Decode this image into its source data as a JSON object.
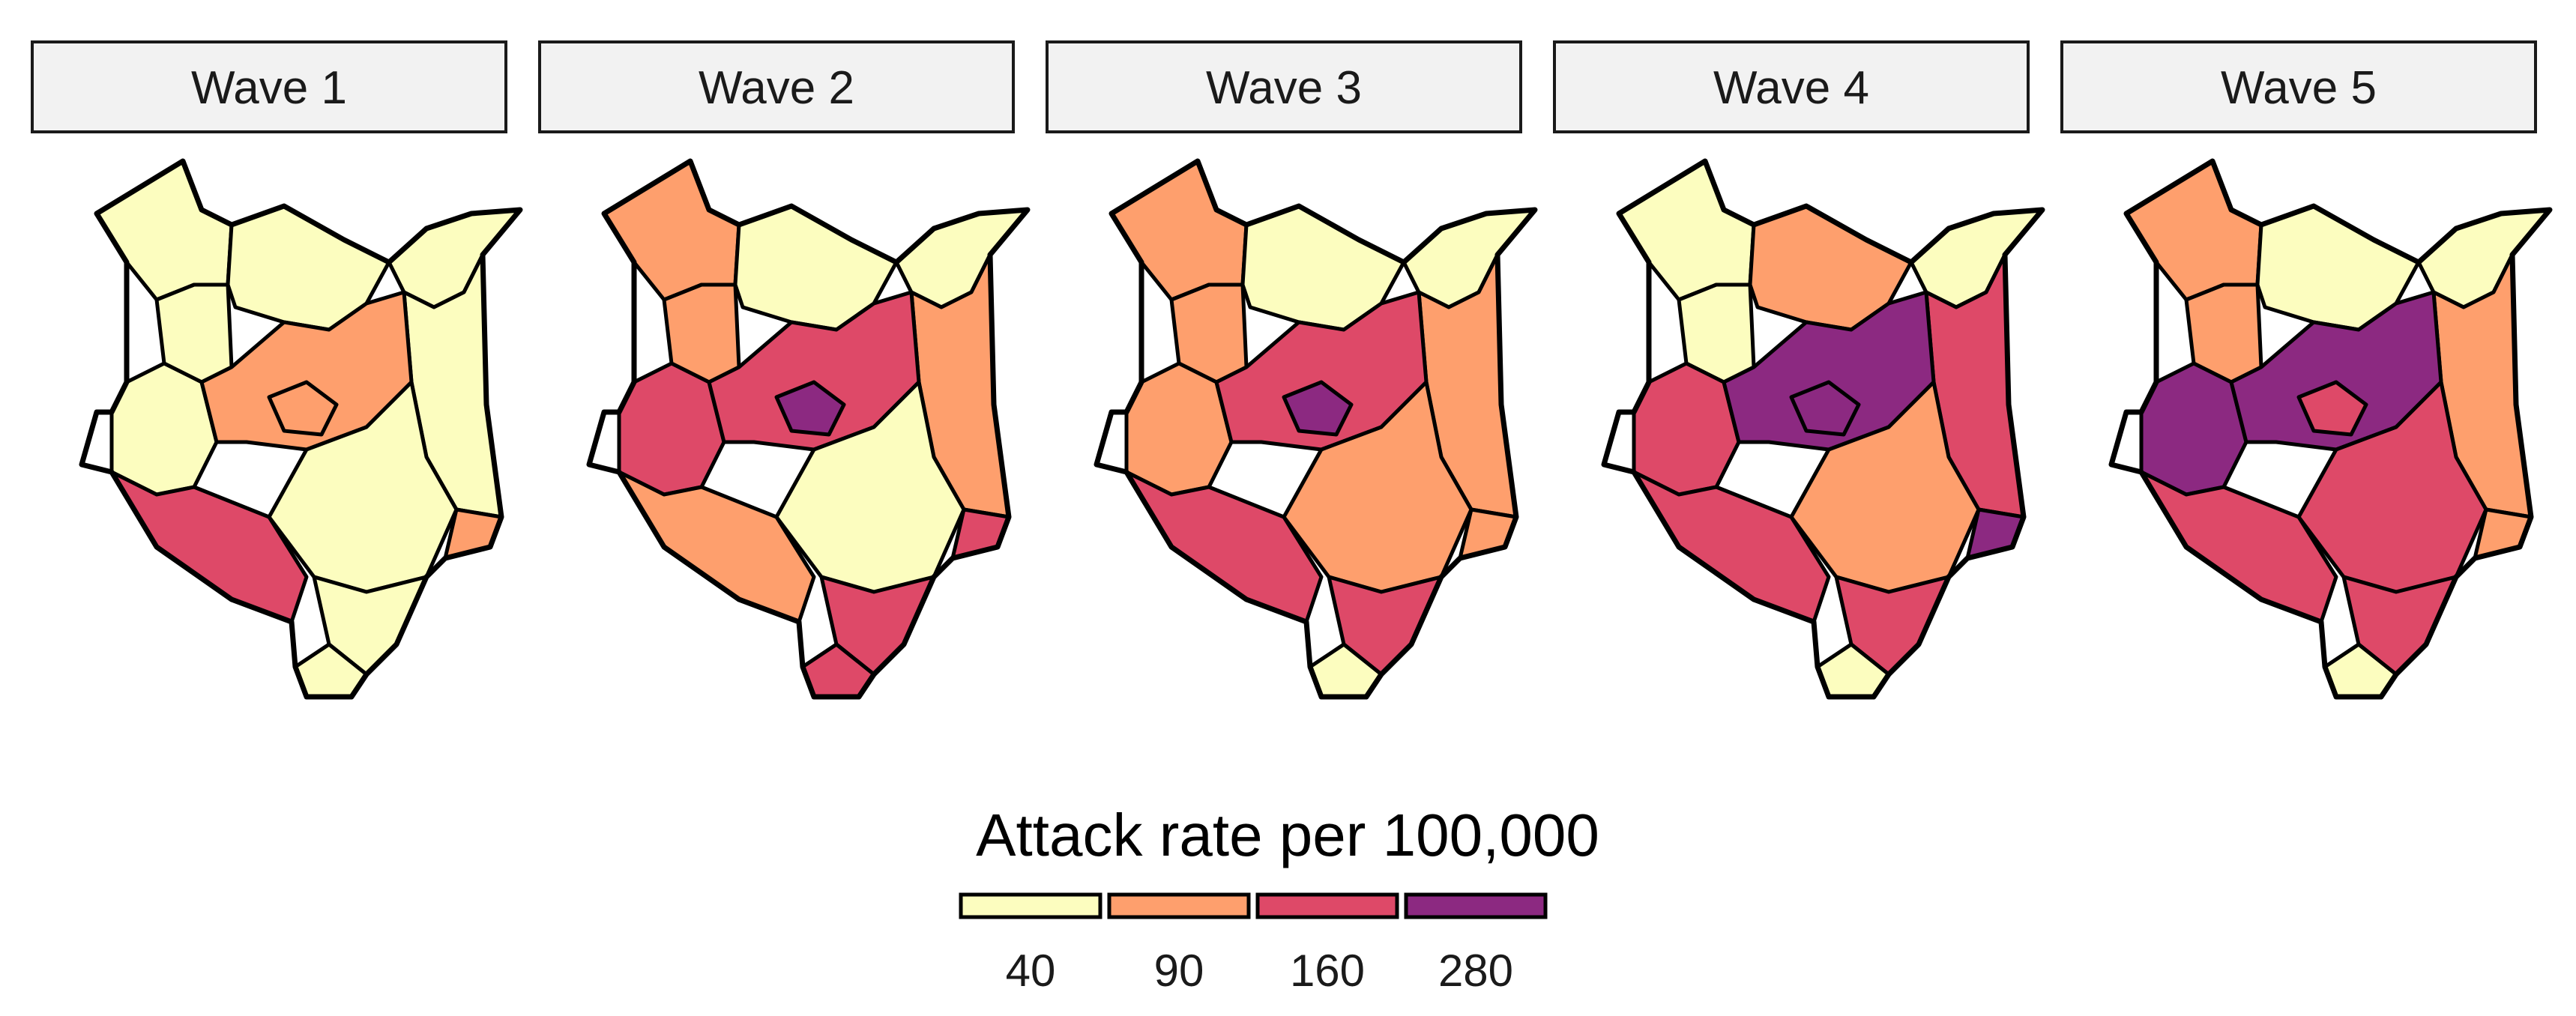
{
  "figure": {
    "panels": [
      {
        "label": "Wave 1",
        "regions": {
          "far_west": "40",
          "north_west": "40",
          "north": "40",
          "north_east": "40",
          "east": "40",
          "centre_west": "40",
          "central_belt": "90",
          "capital": "90",
          "south_west": "160",
          "south_central": "40",
          "south_east": "40",
          "coast_tip": "40",
          "coast_strip": "90"
        }
      },
      {
        "label": "Wave 2",
        "regions": {
          "far_west": "90",
          "north_west": "90",
          "north": "40",
          "north_east": "40",
          "east": "90",
          "centre_west": "160",
          "central_belt": "160",
          "capital": "280",
          "south_west": "90",
          "south_central": "40",
          "south_east": "160",
          "coast_tip": "160",
          "coast_strip": "160"
        }
      },
      {
        "label": "Wave 3",
        "regions": {
          "far_west": "90",
          "north_west": "90",
          "north": "40",
          "north_east": "40",
          "east": "90",
          "centre_west": "90",
          "central_belt": "160",
          "capital": "280",
          "south_west": "160",
          "south_central": "90",
          "south_east": "160",
          "coast_tip": "40",
          "coast_strip": "90"
        }
      },
      {
        "label": "Wave 4",
        "regions": {
          "far_west": "40",
          "north_west": "40",
          "north": "90",
          "north_east": "40",
          "east": "160",
          "centre_west": "160",
          "central_belt": "280",
          "capital": "280",
          "south_west": "160",
          "south_central": "90",
          "south_east": "160",
          "coast_tip": "40",
          "coast_strip": "280"
        }
      },
      {
        "label": "Wave 5",
        "regions": {
          "far_west": "90",
          "north_west": "90",
          "north": "40",
          "north_east": "40",
          "east": "90",
          "centre_west": "280",
          "central_belt": "280",
          "capital": "160",
          "south_west": "160",
          "south_central": "160",
          "south_east": "160",
          "coast_tip": "40",
          "coast_strip": "90"
        }
      }
    ]
  },
  "legend": {
    "title": "Attack rate per 100,000",
    "items": [
      {
        "label": "40",
        "color": "#fcfdbf"
      },
      {
        "label": "90",
        "color": "#fe9f6d"
      },
      {
        "label": "160",
        "color": "#de4968"
      },
      {
        "label": "280",
        "color": "#8c2981"
      }
    ]
  },
  "colors": {
    "40": "#fcfdbf",
    "90": "#fe9f6d",
    "160": "#de4968",
    "280": "#8c2981"
  }
}
